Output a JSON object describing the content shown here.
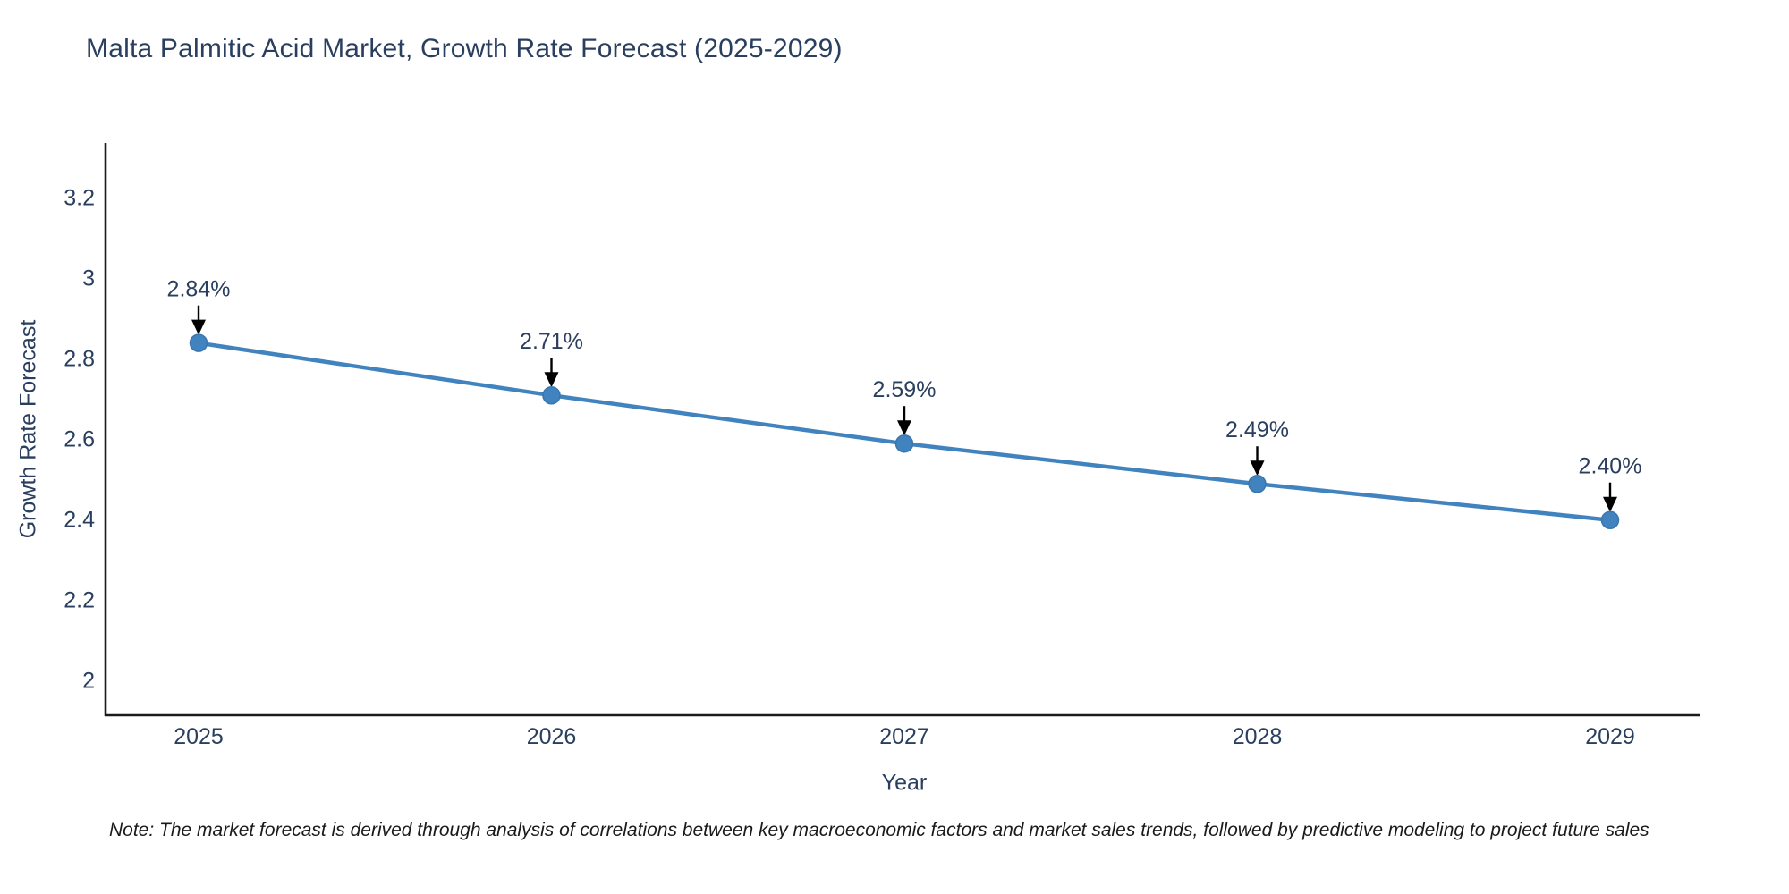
{
  "title": "Malta Palmitic Acid Market, Growth Rate Forecast (2025-2029)",
  "note": "Note: The market forecast is derived through analysis of correlations between key macroeconomic factors and market sales trends, followed by predictive modeling to project future sales",
  "colors": {
    "line": "#4083bf",
    "marker_fill": "#4083bf",
    "marker_stroke": "#3a76ad",
    "text": "#2a3f5f",
    "axis_line": "#1a1a1a",
    "arrow": "#000000",
    "note_text": "#1a1a1a",
    "background": "#ffffff"
  },
  "chart_data": {
    "type": "line",
    "title": "Malta Palmitic Acid Market, Growth Rate Forecast (2025-2029)",
    "xlabel": "Year",
    "ylabel": "Growth Rate Forecast",
    "x": [
      2025,
      2026,
      2027,
      2028,
      2029
    ],
    "series": [
      {
        "name": "Growth Rate Forecast",
        "values": [
          2.84,
          2.71,
          2.59,
          2.49,
          2.4
        ]
      }
    ],
    "point_labels": [
      "2.84%",
      "2.71%",
      "2.59%",
      "2.49%",
      "2.40%"
    ],
    "ytick_values": [
      3.2,
      3.0,
      2.8,
      2.6,
      2.4,
      2.2,
      2.0
    ],
    "ytick_labels": [
      "3.2",
      "3",
      "2.8",
      "2.6",
      "2.4",
      "2.2",
      "2"
    ],
    "xtick_labels": [
      "2025",
      "2026",
      "2027",
      "2028",
      "2029"
    ],
    "xlim": [
      2025,
      2029
    ],
    "ylim": [
      1.915,
      3.337
    ],
    "grid": false,
    "legend_position": "none",
    "annotation_style": "value labels with down arrows above each point"
  }
}
